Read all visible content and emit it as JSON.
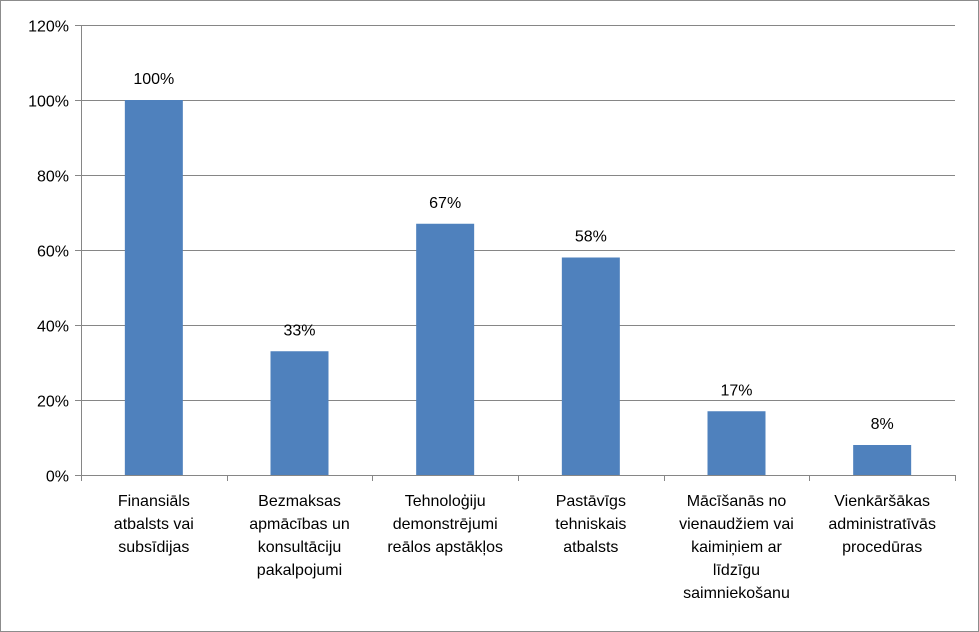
{
  "chart_data": {
    "type": "bar",
    "categories": [
      [
        "Finansiāls",
        "atbalsts vai",
        "subsīdijas"
      ],
      [
        "Bezmaksas",
        "apmācības un",
        "konsultāciju",
        "pakalpojumi"
      ],
      [
        "Tehnoloģiju",
        "demonstrējumi",
        "reālos apstākļos"
      ],
      [
        "Pastāvīgs",
        "tehniskais",
        "atbalsts"
      ],
      [
        "Mācīšanās no",
        "vienaudžiem vai",
        "kaimiņiem ar",
        "līdzīgu",
        "saimniekošanu"
      ],
      [
        "Vienkāršākas",
        "administratīvās",
        "procedūras"
      ]
    ],
    "values": [
      100,
      33,
      67,
      58,
      17,
      8
    ],
    "data_labels": [
      "100%",
      "33%",
      "67%",
      "58%",
      "17%",
      "8%"
    ],
    "ylim": [
      0,
      120
    ],
    "yticks": [
      0,
      20,
      40,
      60,
      80,
      100,
      120
    ],
    "ytick_labels": [
      "0%",
      "20%",
      "40%",
      "60%",
      "80%",
      "100%",
      "120%"
    ],
    "gridlines": true,
    "legend": "none",
    "colors": {
      "bar": "#4f81bd",
      "gridline": "#868686",
      "axis": "#868686"
    }
  }
}
